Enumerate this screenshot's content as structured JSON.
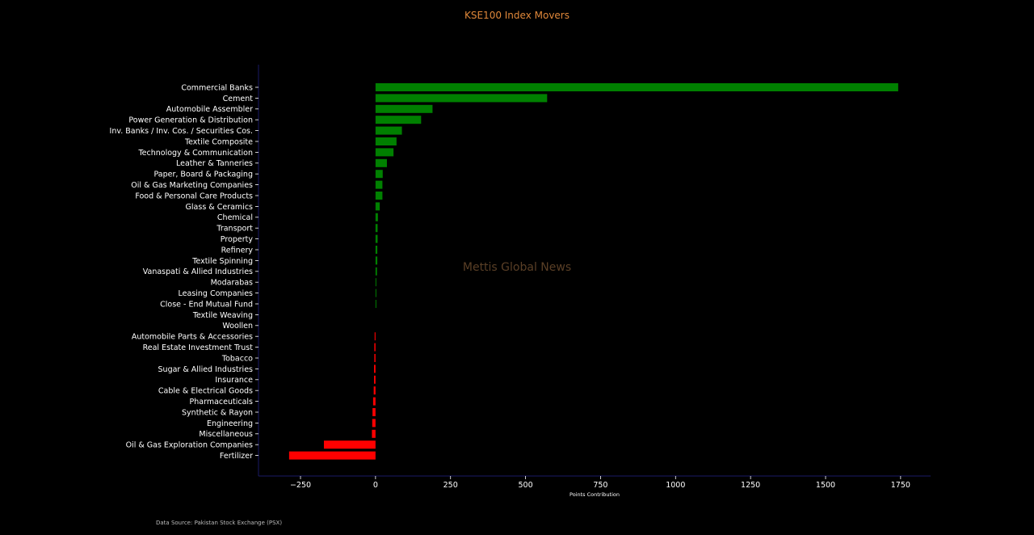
{
  "chart_data": {
    "type": "bar",
    "orientation": "horizontal",
    "title": "KSE100 Index Movers",
    "xlabel": "Points Contribution",
    "ylabel": "",
    "xlim": [
      -390,
      1850
    ],
    "xticks": [
      -250,
      0,
      250,
      500,
      750,
      1000,
      1250,
      1500,
      1750
    ],
    "xtick_labels": [
      "−250",
      "0",
      "250",
      "500",
      "750",
      "1000",
      "1250",
      "1500",
      "1750"
    ],
    "grid": false,
    "watermark": "Mettis Global News",
    "source": "Data Source: Pakistan Stock Exchange (PSX)",
    "colors": {
      "positive": "#008000",
      "negative": "#ff0000",
      "title": "#e0883a",
      "axis": "#1a1a66"
    },
    "categories": [
      "Commercial Banks",
      "Cement",
      "Automobile Assembler",
      "Power Generation & Distribution",
      "Inv. Banks / Inv. Cos. / Securities Cos.",
      "Textile Composite",
      "Technology & Communication",
      "Leather & Tanneries",
      "Paper, Board & Packaging",
      "Oil & Gas Marketing Companies",
      "Food & Personal Care Products",
      "Glass & Ceramics",
      "Chemical",
      "Transport",
      "Property",
      "Refinery",
      "Textile Spinning",
      "Vanaspati & Allied Industries",
      "Modarabas",
      "Leasing Companies",
      "Close - End Mutual Fund",
      "Textile Weaving",
      "Woollen",
      "Automobile Parts & Accessories",
      "Real Estate Investment Trust",
      "Tobacco",
      "Sugar & Allied Industries",
      "Insurance",
      "Cable & Electrical Goods",
      "Pharmaceuticals",
      "Synthetic & Rayon",
      "Engineering",
      "Miscellaneous",
      "Oil & Gas Exploration Companies",
      "Fertilizer"
    ],
    "values": [
      1742,
      572,
      190,
      152,
      88,
      70,
      60,
      38,
      24,
      23,
      23,
      14,
      8,
      7,
      7,
      6,
      6,
      5,
      2,
      1.5,
      1,
      0,
      0,
      -3,
      -4,
      -4,
      -5,
      -5,
      -6,
      -8,
      -10,
      -11,
      -12,
      -172,
      -288
    ]
  }
}
